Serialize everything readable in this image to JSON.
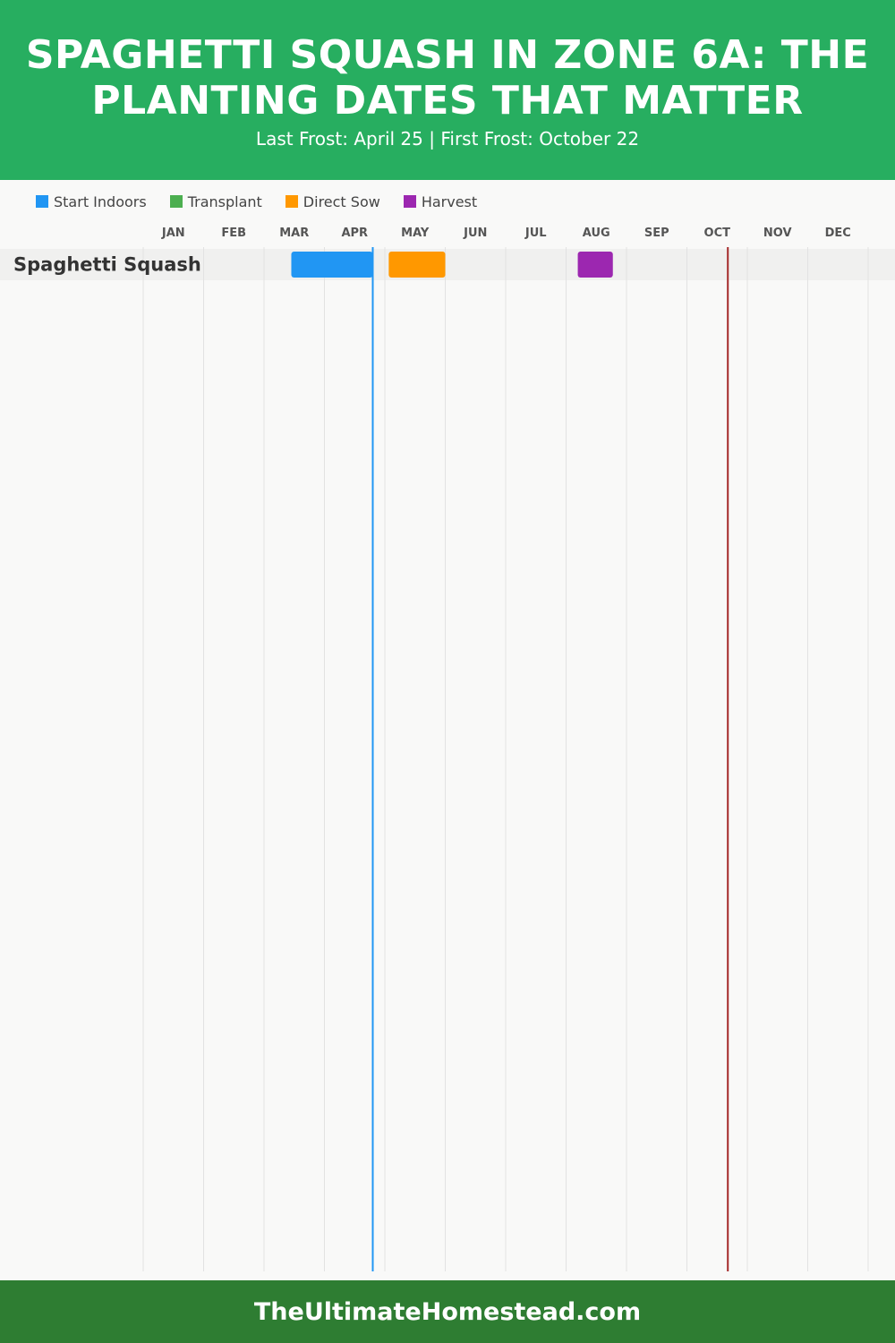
{
  "header": {
    "title": "SPAGHETTI SQUASH IN ZONE 6A: THE PLANTING DATES THAT MATTER",
    "subtitle": "Last Frost: April 25 | First Frost: October 22"
  },
  "legend": [
    {
      "label": "Start Indoors",
      "color": "#2196f3"
    },
    {
      "label": "Transplant",
      "color": "#4caf50"
    },
    {
      "label": "Direct Sow",
      "color": "#ff9800"
    },
    {
      "label": "Harvest",
      "color": "#9c27b0"
    }
  ],
  "chart_data": {
    "type": "gantt",
    "months": [
      "JAN",
      "FEB",
      "MAR",
      "APR",
      "MAY",
      "JUN",
      "JUL",
      "AUG",
      "SEP",
      "OCT",
      "NOV",
      "DEC"
    ],
    "rows": [
      {
        "crop": "Spaghetti Squash",
        "bars": [
          {
            "phase": "Start Indoors",
            "start": "03-15",
            "end": "04-25",
            "color": "#2196f3"
          },
          {
            "phase": "Direct Sow",
            "start": "05-03",
            "end": "06-01",
            "color": "#ff9800"
          },
          {
            "phase": "Harvest",
            "start": "08-07",
            "end": "08-25",
            "color": "#9c27b0"
          }
        ]
      }
    ],
    "markers": [
      {
        "name": "Last Frost",
        "date": "04-25",
        "color": "#2196f3"
      },
      {
        "name": "First Frost",
        "date": "10-22",
        "color": "#a52a2a"
      }
    ],
    "grid": true
  },
  "footer": {
    "text": "TheUltimateHomestead.com"
  }
}
